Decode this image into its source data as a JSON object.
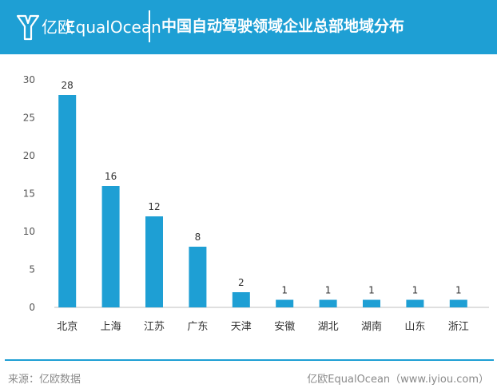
{
  "header": {
    "logo_cn": "亿欧",
    "logo_en": "EqualOcean",
    "title": "中国自动驾驶领域企业总部地域分布"
  },
  "colors": {
    "brand": "#1e9fd4",
    "bar": "#1e9fd4",
    "axis": "#bfbfbf",
    "footer_text": "#8a8a8a"
  },
  "chart_data": {
    "type": "bar",
    "title": "",
    "xlabel": "",
    "ylabel": "",
    "categories": [
      "北京",
      "上海",
      "江苏",
      "广东",
      "天津",
      "安徽",
      "湖北",
      "湖南",
      "山东",
      "浙江"
    ],
    "values": [
      28,
      16,
      12,
      8,
      2,
      1,
      1,
      1,
      1,
      1
    ],
    "ylim": [
      0,
      30
    ],
    "yticks": [
      0,
      5,
      10,
      15,
      20,
      25,
      30
    ],
    "grid": false,
    "data_labels": true
  },
  "footer": {
    "source": "来源：亿欧数据",
    "brand_url": "亿欧EqualOcean（www.iyiou.com）"
  }
}
